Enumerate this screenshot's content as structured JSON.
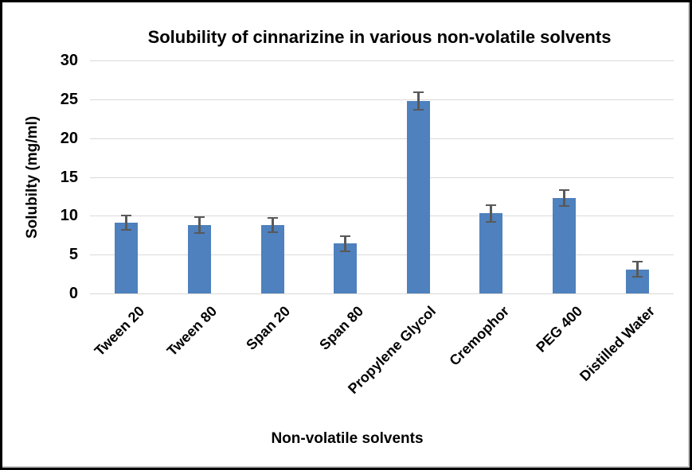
{
  "chart_data": {
    "type": "bar",
    "title": "Solubility of cinnarizine in various non-volatile solvents",
    "xlabel": "Non-volatile solvents",
    "ylabel": "Solubilty (mg/ml)",
    "categories": [
      "Tween 20",
      "Tween 80",
      "Span 20",
      "Span 80",
      "Propylene Glycol",
      "Cremophor",
      "PEG 400",
      "Distilled Water"
    ],
    "values": [
      9.1,
      8.8,
      8.8,
      6.4,
      24.8,
      10.3,
      12.3,
      3.1
    ],
    "errors": [
      0.9,
      1.0,
      0.9,
      1.0,
      1.1,
      1.1,
      1.0,
      1.0
    ],
    "ylim": [
      0,
      30
    ],
    "yticks": [
      0,
      5,
      10,
      15,
      20,
      25,
      30
    ],
    "grid": true,
    "legend": "none",
    "bar_color": "#4E81BD",
    "error_bar_color": "#595959",
    "gridline_color": "#D9D9D9",
    "text_color": "#000000",
    "background_color": "#FFFFFF"
  }
}
